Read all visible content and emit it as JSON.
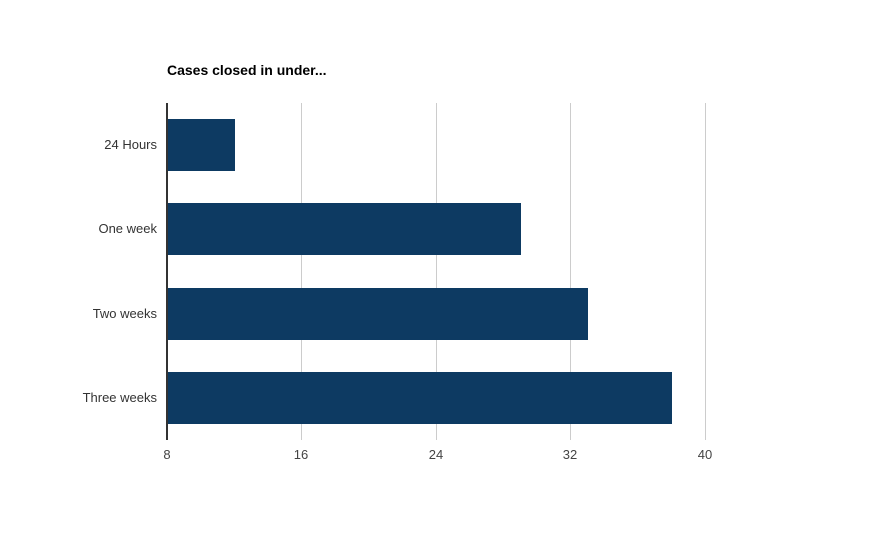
{
  "chart_data": {
    "type": "bar",
    "orientation": "horizontal",
    "title": "Cases closed in under...",
    "xlabel": "",
    "ylabel": "",
    "categories": [
      "24 Hours",
      "One week",
      "Two weeks",
      "Three weeks"
    ],
    "values": [
      12,
      29,
      33,
      38
    ],
    "xlim": [
      8,
      44
    ],
    "xticks": [
      8,
      16,
      24,
      32,
      40
    ],
    "grid": "vertical-only",
    "legend_position": "none",
    "colors": {
      "bar": "#0d3a62",
      "gridline": "#cccccc",
      "axis_line": "#333333",
      "title_text": "#000000",
      "category_label": "#333333",
      "tick_label": "#444444",
      "background": "#ffffff"
    }
  }
}
